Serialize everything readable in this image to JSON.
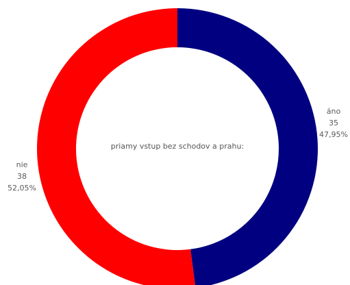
{
  "chart_data": {
    "type": "pie",
    "center_label": "priamy vstup bez schodov a prahu:",
    "slices": [
      {
        "category": "áno",
        "value": 35,
        "percent": "47,95%",
        "color": "#000080"
      },
      {
        "category": "nie",
        "value": 38,
        "percent": "52,05%",
        "color": "#ff0000"
      }
    ],
    "hole": "donut",
    "legend": "none"
  }
}
